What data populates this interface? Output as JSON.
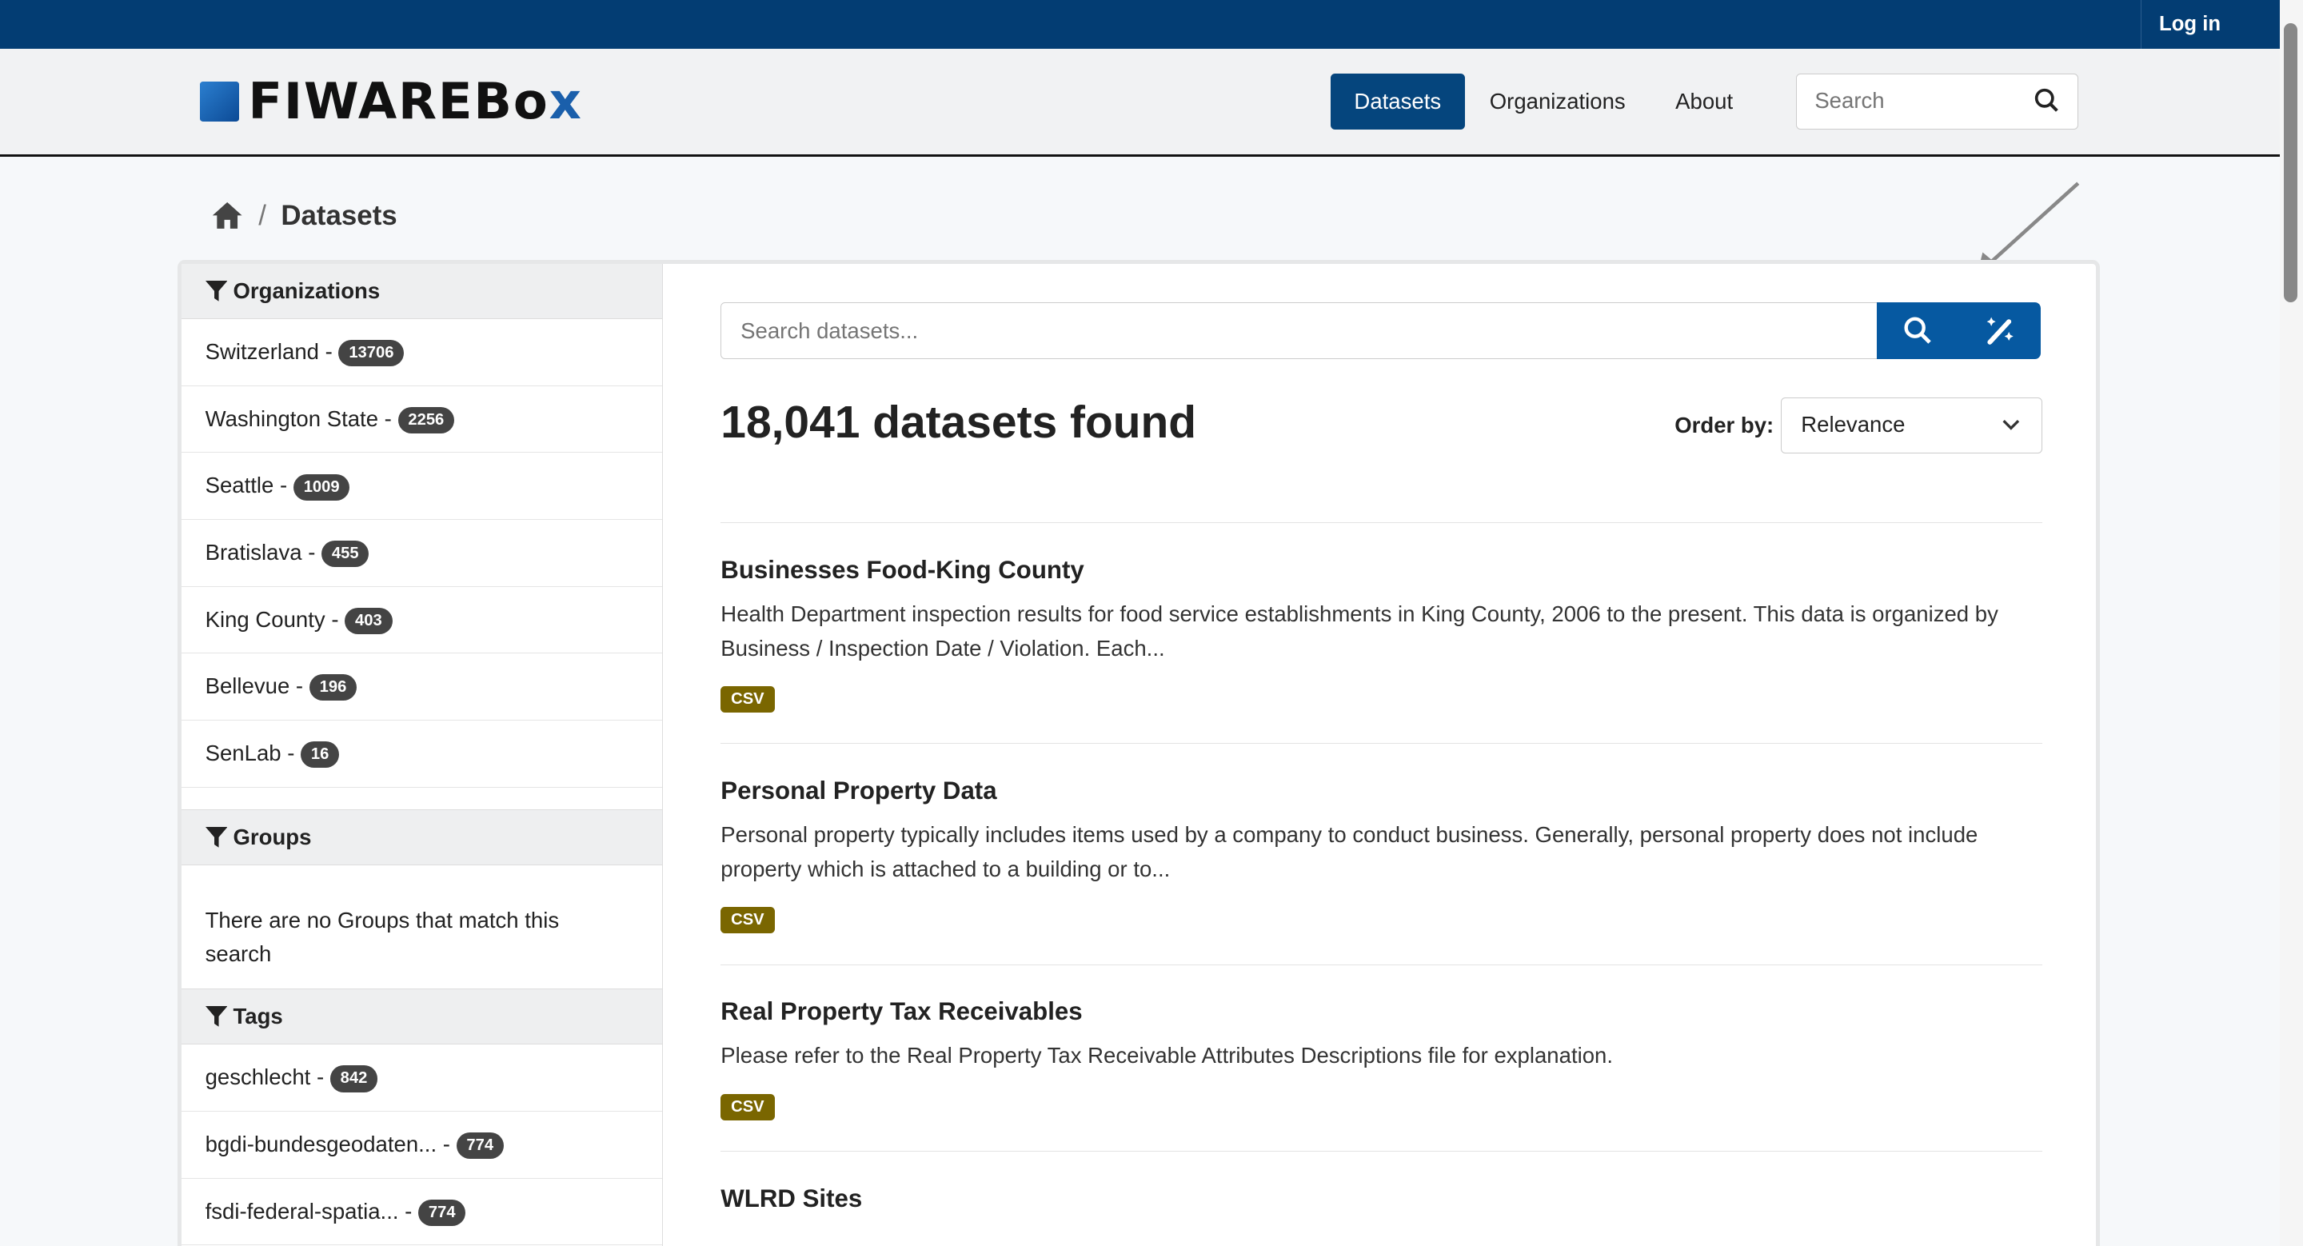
{
  "topbar": {
    "login": "Log in"
  },
  "header": {
    "logo_text": "FIWAREBox",
    "nav": [
      "Datasets",
      "Organizations",
      "About"
    ],
    "search_placeholder": "Search"
  },
  "breadcrumb": {
    "current": "Datasets"
  },
  "sidebar": {
    "organizations": {
      "title": "Organizations",
      "items": [
        {
          "label": "Switzerland -",
          "count": "13706"
        },
        {
          "label": "Washington State -",
          "count": "2256"
        },
        {
          "label": "Seattle -",
          "count": "1009"
        },
        {
          "label": "Bratislava -",
          "count": "455"
        },
        {
          "label": "King County -",
          "count": "403"
        },
        {
          "label": "Bellevue -",
          "count": "196"
        },
        {
          "label": "SenLab -",
          "count": "16"
        }
      ]
    },
    "groups": {
      "title": "Groups",
      "empty": "There are no Groups that match this search"
    },
    "tags": {
      "title": "Tags",
      "items": [
        {
          "label": "geschlecht -",
          "count": "842"
        },
        {
          "label": "bgdi-bundesgeodaten... -",
          "count": "774"
        },
        {
          "label": "fsdi-federal-spatia... -",
          "count": "774"
        }
      ]
    }
  },
  "main": {
    "search_placeholder": "Search datasets...",
    "count": "18,041 datasets found",
    "order_label": "Order by:",
    "order_value": "Relevance",
    "datasets": [
      {
        "title": "Businesses Food-King County",
        "desc": "Health Department inspection results for food service establishments in King County, 2006 to the present. This data is organized by Business / Inspection Date / Violation. Each...",
        "format": "CSV"
      },
      {
        "title": "Personal Property Data",
        "desc": "Personal property typically includes items used by a company to conduct business. Generally, personal property does not include property which is attached to a building or to...",
        "format": "CSV"
      },
      {
        "title": "Real Property Tax Receivables",
        "desc": "Please refer to the Real Property Tax Receivable Attributes Descriptions file for explanation.",
        "format": "CSV"
      },
      {
        "title": "WLRD Sites",
        "desc": "",
        "format": ""
      }
    ]
  }
}
